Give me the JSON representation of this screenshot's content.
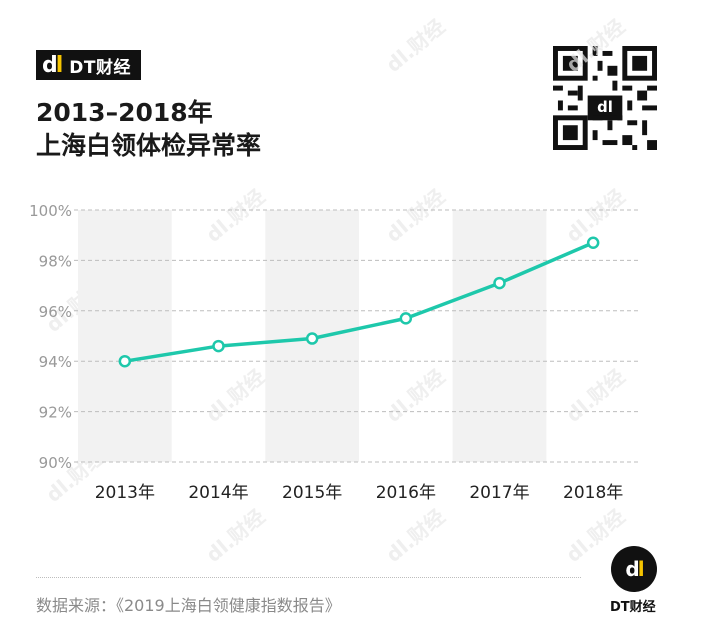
{
  "brand": {
    "logo_mark": "dl",
    "name": "DT财经"
  },
  "title": {
    "line1": "2013–2018年",
    "line2": "上海白领体检异常率"
  },
  "source": "数据来源：《2019上海白领健康指数报告》",
  "footer_logo": {
    "mark": "dl",
    "name": "DT财经"
  },
  "watermark": "dl.财经",
  "colors": {
    "line": "#1ec8ab",
    "band": "#f2f2f2",
    "grid": "#bdbdbd",
    "brand_accent": "#f5c400"
  },
  "chart_data": {
    "type": "line",
    "categories": [
      "2013年",
      "2014年",
      "2015年",
      "2016年",
      "2017年",
      "2018年"
    ],
    "series": [
      {
        "values": [
          94.0,
          94.6,
          94.9,
          95.7,
          97.1,
          98.7
        ]
      }
    ],
    "ylim": [
      90,
      100
    ],
    "yticks": [
      90,
      92,
      94,
      96,
      98,
      100
    ],
    "ytick_labels": [
      "90%",
      "92%",
      "94%",
      "96%",
      "98%",
      "100%"
    ],
    "grid": "dashed-horizontal",
    "alternating_bands": true,
    "legend": "none"
  }
}
